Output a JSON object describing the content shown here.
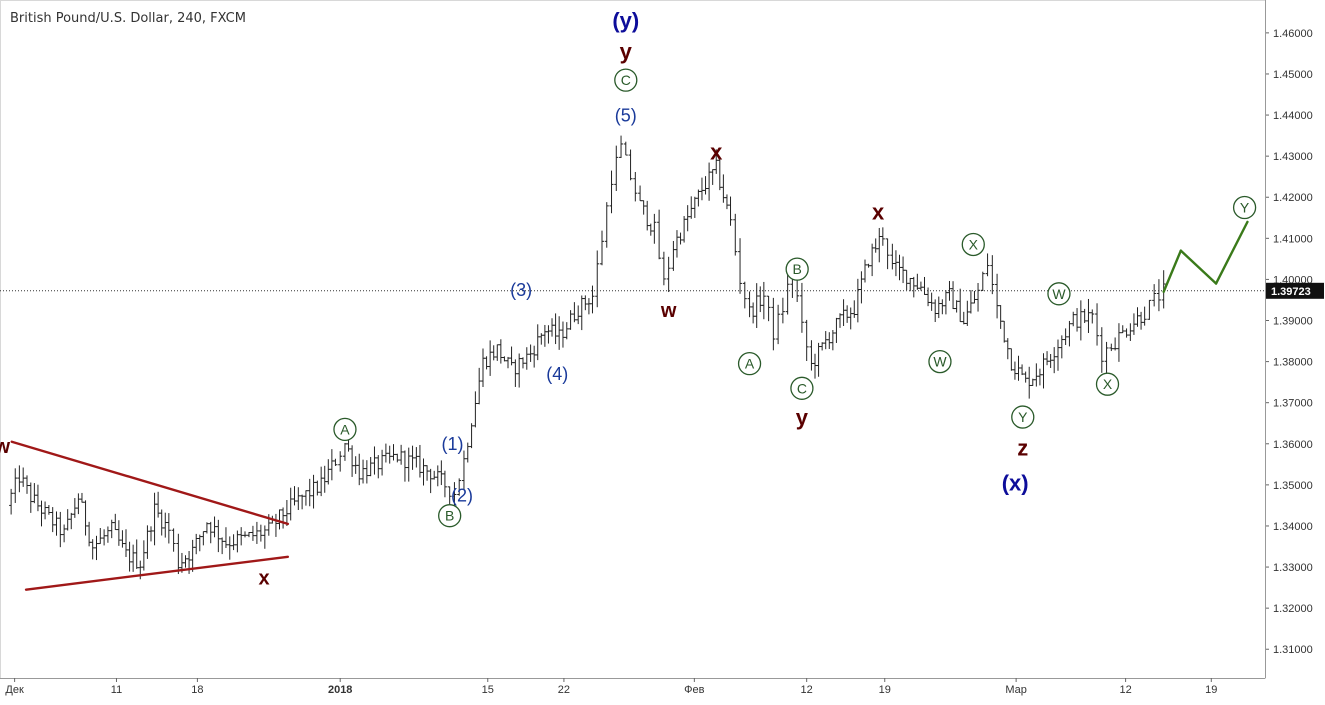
{
  "header": {
    "title": "British Pound/U.S. Dollar, 240, FXCM"
  },
  "colors": {
    "candles": "#222222",
    "wave_dark": "#5a0000",
    "wave_blue": "#1a3a9a",
    "wave_navy": "#0d0d9a",
    "circle_green": "#2a5a2a",
    "triangle_red": "#a01818",
    "projection_green": "#3a7a1a",
    "price_label_bg": "#111111"
  },
  "chart_data": {
    "type": "ohlc",
    "symbol": "British Pound/U.S. Dollar",
    "timeframe": "240",
    "source": "FXCM",
    "y_axis": {
      "ticks": [
        "1.46000",
        "1.45000",
        "1.44000",
        "1.43000",
        "1.42000",
        "1.41000",
        "1.40000",
        "1.39000",
        "1.38000",
        "1.37000",
        "1.36000",
        "1.35000",
        "1.34000",
        "1.33000",
        "1.32000",
        "1.31000"
      ],
      "range": [
        1.303,
        1.468
      ]
    },
    "x_axis": {
      "ticks": [
        "Дек",
        "11",
        "18",
        "2018",
        "15",
        "22",
        "Фев",
        "12",
        "19",
        "Мар",
        "12",
        "19"
      ]
    },
    "current_price": "1.39723",
    "path_points": [
      [
        0,
        1.345
      ],
      [
        1.3,
        1.352
      ],
      [
        2.5,
        1.347
      ],
      [
        4,
        1.343
      ],
      [
        6,
        1.338
      ],
      [
        7.5,
        1.347
      ],
      [
        9,
        1.335
      ],
      [
        11,
        1.339
      ],
      [
        12.5,
        1.333
      ],
      [
        14,
        1.331
      ],
      [
        15.5,
        1.344
      ],
      [
        17,
        1.339
      ],
      [
        18,
        1.331
      ],
      [
        19.5,
        1.334
      ],
      [
        21,
        1.341
      ],
      [
        23,
        1.336
      ],
      [
        25,
        1.337
      ],
      [
        27.5,
        1.339
      ],
      [
        29,
        1.343
      ],
      [
        31,
        1.347
      ],
      [
        33,
        1.35
      ],
      [
        34.5,
        1.356
      ],
      [
        35.5,
        1.36
      ],
      [
        37,
        1.353
      ],
      [
        39,
        1.355
      ],
      [
        41,
        1.357
      ],
      [
        43,
        1.355
      ],
      [
        44.5,
        1.353
      ],
      [
        46,
        1.35
      ],
      [
        47,
        1.348
      ],
      [
        48,
        1.356
      ],
      [
        48.8,
        1.366
      ],
      [
        50,
        1.38
      ],
      [
        51.5,
        1.383
      ],
      [
        53,
        1.378
      ],
      [
        55,
        1.382
      ],
      [
        56.5,
        1.388
      ],
      [
        58,
        1.386
      ],
      [
        60,
        1.393
      ],
      [
        61.5,
        1.396
      ],
      [
        62.5,
        1.41
      ],
      [
        63.5,
        1.425
      ],
      [
        64.5,
        1.432
      ],
      [
        65.5,
        1.425
      ],
      [
        66.5,
        1.418
      ],
      [
        68,
        1.412
      ],
      [
        69,
        1.399
      ],
      [
        70,
        1.408
      ],
      [
        71.5,
        1.415
      ],
      [
        73,
        1.422
      ],
      [
        74.5,
        1.427
      ],
      [
        76,
        1.414
      ],
      [
        77,
        1.4
      ],
      [
        78,
        1.392
      ],
      [
        79.5,
        1.396
      ],
      [
        80.5,
        1.387
      ],
      [
        81.5,
        1.393
      ],
      [
        82.5,
        1.403
      ],
      [
        83.5,
        1.388
      ],
      [
        84.5,
        1.379
      ],
      [
        86,
        1.385
      ],
      [
        87.5,
        1.39
      ],
      [
        89,
        1.393
      ],
      [
        90.5,
        1.405
      ],
      [
        92,
        1.411
      ],
      [
        93,
        1.403
      ],
      [
        94.5,
        1.401
      ],
      [
        96,
        1.398
      ],
      [
        97.5,
        1.393
      ],
      [
        99,
        1.396
      ],
      [
        100.5,
        1.39
      ],
      [
        102,
        1.397
      ],
      [
        103,
        1.404
      ],
      [
        104,
        1.393
      ],
      [
        105.5,
        1.38
      ],
      [
        107,
        1.375
      ],
      [
        108.5,
        1.378
      ],
      [
        110,
        1.383
      ],
      [
        112,
        1.39
      ],
      [
        114,
        1.391
      ],
      [
        115,
        1.382
      ],
      [
        116,
        1.384
      ],
      [
        118,
        1.389
      ],
      [
        119.5,
        1.392
      ],
      [
        120.5,
        1.395
      ],
      [
        121.5,
        1.397
      ]
    ],
    "wave_labels": [
      {
        "text": "w",
        "x": -0.5,
        "y": 1.3595,
        "color": "wave_dark",
        "size": 20,
        "weight": "bold"
      },
      {
        "text": "x",
        "x": 27,
        "y": 1.3275,
        "color": "wave_dark",
        "size": 20,
        "weight": "bold"
      },
      {
        "text": "A",
        "x": 35.5,
        "y": 1.3635,
        "circle": true
      },
      {
        "text": "B",
        "x": 46.5,
        "y": 1.3425,
        "circle": true
      },
      {
        "text": "(1)",
        "x": 46.8,
        "y": 1.36,
        "color": "wave_blue",
        "size": 18
      },
      {
        "text": "(2)",
        "x": 47.8,
        "y": 1.3475,
        "color": "wave_blue",
        "size": 18
      },
      {
        "text": "(3)",
        "x": 54,
        "y": 1.3975,
        "color": "wave_blue",
        "size": 18
      },
      {
        "text": "(4)",
        "x": 57.8,
        "y": 1.377,
        "color": "wave_blue",
        "size": 18
      },
      {
        "text": "(5)",
        "x": 65,
        "y": 1.44,
        "color": "wave_blue",
        "size": 18
      },
      {
        "text": "C",
        "x": 65,
        "y": 1.4485,
        "circle": true
      },
      {
        "text": "y",
        "x": 65,
        "y": 1.4555,
        "color": "wave_dark",
        "size": 22,
        "weight": "bold"
      },
      {
        "text": "(y)",
        "x": 65,
        "y": 1.463,
        "color": "wave_navy",
        "size": 22,
        "weight": "bold"
      },
      {
        "text": "w",
        "x": 69.5,
        "y": 1.3925,
        "color": "wave_dark",
        "size": 20,
        "weight": "bold"
      },
      {
        "text": "x",
        "x": 74.5,
        "y": 1.431,
        "color": "wave_dark",
        "size": 22,
        "weight": "bold"
      },
      {
        "text": "A",
        "x": 78,
        "y": 1.3795,
        "circle": true
      },
      {
        "text": "B",
        "x": 83,
        "y": 1.4025,
        "circle": true
      },
      {
        "text": "C",
        "x": 83.5,
        "y": 1.3735,
        "circle": true
      },
      {
        "text": "y",
        "x": 83.5,
        "y": 1.3665,
        "color": "wave_dark",
        "size": 22,
        "weight": "bold"
      },
      {
        "text": "x",
        "x": 91.5,
        "y": 1.4165,
        "color": "wave_dark",
        "size": 22,
        "weight": "bold"
      },
      {
        "text": "W",
        "x": 98,
        "y": 1.38,
        "circle": true
      },
      {
        "text": "X",
        "x": 101.5,
        "y": 1.4085,
        "circle": true
      },
      {
        "text": "W",
        "x": 110.5,
        "y": 1.3965,
        "circle": true
      },
      {
        "text": "Y",
        "x": 106.7,
        "y": 1.3665,
        "circle": true
      },
      {
        "text": "z",
        "x": 106.7,
        "y": 1.359,
        "color": "wave_dark",
        "size": 22,
        "weight": "bold"
      },
      {
        "text": "(x)",
        "x": 105.9,
        "y": 1.3505,
        "color": "wave_navy",
        "size": 22,
        "weight": "bold"
      },
      {
        "text": "X",
        "x": 115.6,
        "y": 1.3745,
        "circle": true
      },
      {
        "text": "Y",
        "x": 130,
        "y": 1.4175,
        "circle": true
      }
    ],
    "lines": [
      {
        "from": [
          0.5,
          1.3605
        ],
        "to": [
          29.5,
          1.3405
        ],
        "color": "triangle_red",
        "width": 2.4
      },
      {
        "from": [
          2,
          1.3245
        ],
        "to": [
          29.5,
          1.3325
        ],
        "color": "triangle_red",
        "width": 2.4
      },
      {
        "from": [
          121.5,
          1.397
        ],
        "to": [
          123.3,
          1.407
        ],
        "color": "projection_green",
        "width": 2.4
      },
      {
        "from": [
          123.3,
          1.407
        ],
        "to": [
          127,
          1.399
        ],
        "color": "projection_green",
        "width": 2.4
      },
      {
        "from": [
          127,
          1.399
        ],
        "to": [
          130.3,
          1.414
        ],
        "color": "projection_green",
        "width": 2.4
      }
    ]
  }
}
